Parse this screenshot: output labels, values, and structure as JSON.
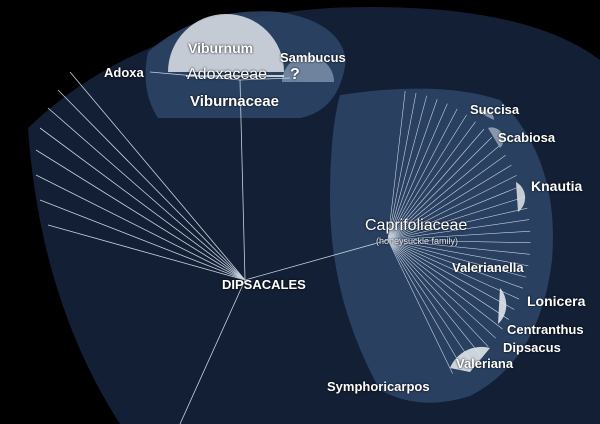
{
  "taxa": {
    "order": "DIPSACALES",
    "adoxa": "Adoxa",
    "viburnum": "Viburnum",
    "sambucus": "Sambucus",
    "adoxaceae": "Adoxaceae",
    "question_mark": "?",
    "viburnaceae": "Viburnaceae",
    "caprifoliaceae": "Caprifoliaceae",
    "caprifoliaceae_common": "(honeysuckle family)",
    "succisa": "Succisa",
    "scabiosa": "Scabiosa",
    "knautia": "Knautia",
    "valerianella": "Valerianella",
    "lonicera": "Lonicera",
    "centranthus": "Centranthus",
    "dipsacus": "Dipsacus",
    "valeriana": "Valeriana",
    "symphoricarpos": "Symphoricarpos"
  },
  "colors": {
    "background": "#000000",
    "outer_region": "#16253d",
    "inner_region": "#2c4466",
    "lines": "#c8d2e0",
    "text": "#ffffff"
  }
}
